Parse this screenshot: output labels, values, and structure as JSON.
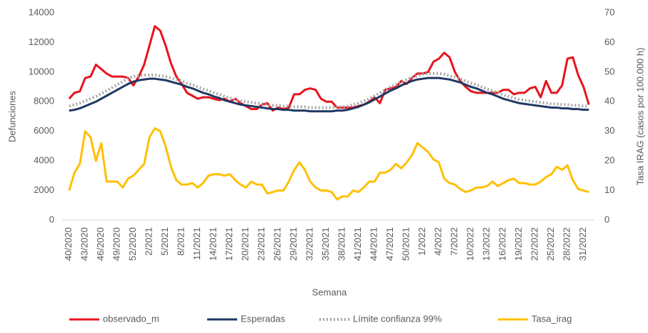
{
  "chart_data": {
    "type": "line",
    "x_label": "Semana",
    "y_label": "Defunciones",
    "y2_label": "Tasa IRAG (casos por 100.000 h)",
    "categories": [
      "40/2020",
      null,
      null,
      "43/2020",
      null,
      null,
      "46/2020",
      null,
      null,
      "49/2020",
      null,
      null,
      "52/2020",
      null,
      null,
      "2/2021",
      null,
      null,
      "5/2021",
      null,
      null,
      "8/2021",
      null,
      null,
      "11/2021",
      null,
      null,
      "14/2021",
      null,
      null,
      "17/2021",
      null,
      null,
      "20/2021",
      null,
      null,
      "23/2021",
      null,
      null,
      "26/2021",
      null,
      null,
      "29/2021",
      null,
      null,
      "32/2021",
      null,
      null,
      "35/2021",
      null,
      null,
      "38/2021",
      null,
      null,
      "41/2021",
      null,
      null,
      "44/2021",
      null,
      null,
      "47/2021",
      null,
      null,
      "50/2021",
      null,
      null,
      "1/2022",
      null,
      null,
      "4/2022",
      null,
      null,
      "7/2022",
      null,
      null,
      "10/2022",
      null,
      null,
      "13/2022",
      null,
      null,
      "16/2022",
      null,
      null,
      "19/2022",
      null,
      null,
      "22/2022",
      null,
      null,
      "25/2022",
      null,
      null,
      "28/2022",
      null,
      null,
      "31/2022",
      null
    ],
    "series": [
      {
        "name": "observado_m",
        "color": "#e8141c",
        "dash": "solid",
        "values": [
          8200,
          8600,
          8700,
          9600,
          9700,
          10500,
          10200,
          9900,
          9700,
          9700,
          9700,
          9600,
          9100,
          9700,
          10500,
          11800,
          13100,
          12800,
          11800,
          10600,
          9700,
          9200,
          8600,
          8400,
          8200,
          8300,
          8300,
          8200,
          8100,
          8200,
          8000,
          8200,
          7900,
          7700,
          7500,
          7500,
          7800,
          7900,
          7400,
          7600,
          7500,
          7600,
          8500,
          8500,
          8800,
          8900,
          8800,
          8200,
          8000,
          8000,
          7600,
          7600,
          7600,
          7600,
          7700,
          7800,
          8000,
          8300,
          7900,
          8800,
          8900,
          9000,
          9400,
          9200,
          9600,
          9900,
          9900,
          10000,
          10700,
          10900,
          11300,
          11000,
          10000,
          9400,
          9000,
          8700,
          8600,
          8600,
          8600,
          8600,
          8600,
          8800,
          8800,
          8500,
          8600,
          8600,
          8900,
          9000,
          8300,
          9400,
          8600,
          8600,
          9100,
          10900,
          11000,
          9800,
          9000,
          7800
        ]
      },
      {
        "name": "Esperadas",
        "color": "#1f3864",
        "dash": "solid",
        "values": [
          7400,
          7450,
          7550,
          7700,
          7850,
          8000,
          8200,
          8400,
          8600,
          8800,
          9000,
          9200,
          9350,
          9450,
          9500,
          9550,
          9550,
          9500,
          9450,
          9350,
          9250,
          9150,
          9000,
          8900,
          8750,
          8600,
          8500,
          8350,
          8250,
          8100,
          8000,
          7900,
          7800,
          7750,
          7700,
          7650,
          7600,
          7550,
          7500,
          7500,
          7450,
          7450,
          7400,
          7400,
          7400,
          7350,
          7350,
          7350,
          7350,
          7350,
          7400,
          7400,
          7450,
          7550,
          7650,
          7800,
          7950,
          8150,
          8350,
          8550,
          8750,
          8900,
          9100,
          9250,
          9400,
          9500,
          9550,
          9600,
          9600,
          9600,
          9550,
          9500,
          9400,
          9300,
          9150,
          9000,
          8900,
          8750,
          8600,
          8500,
          8350,
          8200,
          8100,
          8000,
          7900,
          7850,
          7800,
          7750,
          7700,
          7650,
          7600,
          7600,
          7550,
          7550,
          7500,
          7500,
          7450,
          7450
        ]
      },
      {
        "name": "Límite confianza 99%",
        "color": "#a6a6a6",
        "dash": "dotted",
        "values": [
          7700,
          7800,
          7900,
          8050,
          8200,
          8350,
          8550,
          8750,
          8950,
          9150,
          9350,
          9550,
          9700,
          9750,
          9800,
          9800,
          9800,
          9750,
          9700,
          9600,
          9500,
          9400,
          9250,
          9150,
          9000,
          8850,
          8750,
          8600,
          8500,
          8350,
          8250,
          8150,
          8050,
          8000,
          7950,
          7900,
          7850,
          7800,
          7750,
          7750,
          7700,
          7700,
          7650,
          7650,
          7650,
          7600,
          7600,
          7600,
          7600,
          7600,
          7650,
          7650,
          7700,
          7800,
          7900,
          8050,
          8200,
          8400,
          8600,
          8800,
          9000,
          9150,
          9350,
          9500,
          9650,
          9750,
          9850,
          9900,
          9900,
          9900,
          9850,
          9750,
          9650,
          9550,
          9400,
          9250,
          9150,
          9000,
          8850,
          8750,
          8600,
          8450,
          8350,
          8250,
          8150,
          8100,
          8050,
          8000,
          7950,
          7900,
          7850,
          7850,
          7800,
          7800,
          7750,
          7750,
          7700,
          7700
        ]
      },
      {
        "name": "Tasa_irag",
        "color": "#ffc000",
        "dash": "solid",
        "axis": "y2",
        "values": [
          10,
          16,
          19,
          30,
          28,
          20,
          26,
          13,
          13,
          13,
          11,
          14,
          15,
          17,
          19,
          28,
          31,
          30,
          25,
          18,
          13.5,
          12,
          12,
          12.5,
          11,
          12.5,
          15,
          15.5,
          15.5,
          15,
          15.5,
          13.5,
          12,
          11,
          13,
          12,
          12,
          9,
          9.5,
          10,
          10,
          13,
          17,
          19.5,
          17,
          13,
          11,
          10,
          10,
          9.5,
          7,
          8,
          8,
          10,
          9.5,
          11,
          13,
          13,
          16,
          16,
          17,
          19,
          17.5,
          19.5,
          22,
          26,
          24.5,
          23,
          20.5,
          19.5,
          14,
          12.5,
          12,
          10.5,
          9.5,
          10,
          11,
          11,
          11.5,
          13,
          11.5,
          12.5,
          13.5,
          14,
          12.5,
          12.5,
          12,
          12,
          13,
          14.5,
          15.5,
          18,
          17,
          18.5,
          13.5,
          10.5,
          10,
          9.5
        ]
      }
    ],
    "ylim": [
      0,
      14000
    ],
    "yticks": [
      0,
      2000,
      4000,
      6000,
      8000,
      10000,
      12000,
      14000
    ],
    "y2lim": [
      0,
      70
    ],
    "y2ticks": [
      0,
      10,
      20,
      30,
      40,
      50,
      60,
      70
    ],
    "grid": false,
    "legend": "bottom"
  }
}
